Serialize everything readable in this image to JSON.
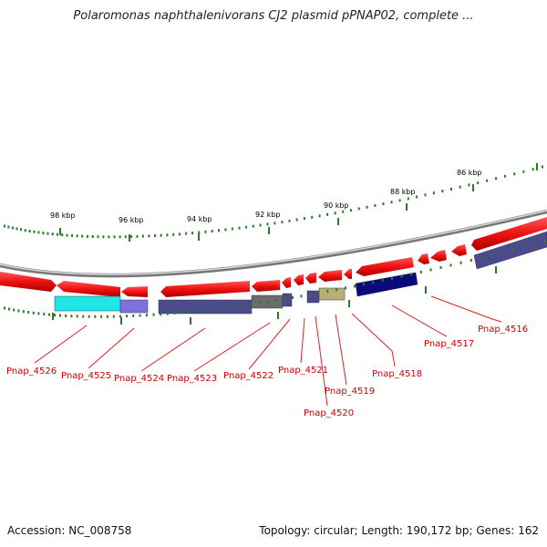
{
  "title": "Polaromonas naphthalenivorans CJ2 plasmid pPNAP02, complete ...",
  "footer": {
    "accession": "Accession: NC_008758",
    "summary": "Topology: circular; Length: 190,172 bp; Genes: 162"
  },
  "colors": {
    "forward_gene": "#ee1111",
    "backbone": "#888888",
    "tick": "#2a7a2a",
    "label": "#cc0000",
    "leader": "#dd2222"
  },
  "scale_labels": [
    "98 kbp",
    "96 kbp",
    "94 kbp",
    "92 kbp",
    "90 kbp",
    "88 kbp",
    "86 kbp"
  ],
  "gene_labels": [
    "Pnap_4526",
    "Pnap_4525",
    "Pnap_4524",
    "Pnap_4523",
    "Pnap_4522",
    "Pnap_4521",
    "Pnap_4520",
    "Pnap_4519",
    "Pnap_4518",
    "Pnap_4517",
    "Pnap_4516"
  ],
  "reverse_gene_colors": [
    "#22e6e6",
    "#7f70dd",
    "#4a4a8c",
    "#6b6b6b",
    "#4a4a8c",
    "#4a4a8c",
    "#b8b070",
    "#0a0a7a",
    "#4a4a8c"
  ]
}
